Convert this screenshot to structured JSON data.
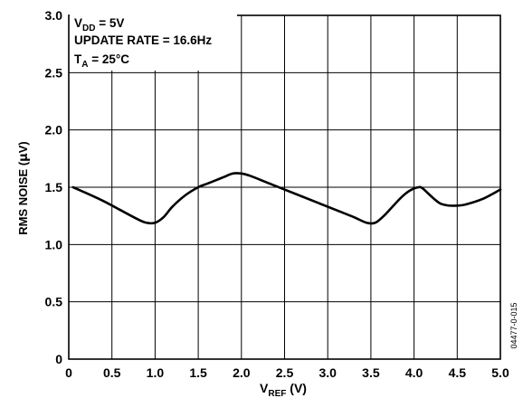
{
  "chart_data": {
    "type": "line",
    "xlabel": {
      "main": "V",
      "sub": "REF",
      "unit": " (V)"
    },
    "ylabel": {
      "pre": "RMS NOISE (",
      "mu": "µ",
      "post": "V)"
    },
    "xlim": [
      0,
      5
    ],
    "ylim": [
      0,
      3
    ],
    "grid": true,
    "x_ticks": [
      "0",
      "0.5",
      "1.0",
      "1.5",
      "2.0",
      "2.5",
      "3.0",
      "3.5",
      "4.0",
      "4.5",
      "5.0"
    ],
    "y_ticks": [
      "0",
      "0.5",
      "1.0",
      "1.5",
      "2.0",
      "2.5",
      "3.0"
    ],
    "annotations": {
      "line1": {
        "main": "V",
        "sub": "DD",
        "rest": " = 5V"
      },
      "line2": "UPDATE RATE = 16.6Hz",
      "line3": {
        "main": "T",
        "sub": "A",
        "rest": " = 25°C"
      }
    },
    "figure_code": "04477-0-015",
    "series": [
      {
        "x": [
          0.05,
          0.2,
          0.4,
          0.6,
          0.8,
          0.9,
          1.0,
          1.1,
          1.2,
          1.35,
          1.5,
          1.6,
          1.7,
          1.8,
          1.9,
          2.0,
          2.1,
          2.3,
          2.5,
          2.7,
          2.9,
          3.1,
          3.3,
          3.45,
          3.55,
          3.65,
          3.75,
          3.85,
          3.95,
          4.05,
          4.1,
          4.2,
          4.3,
          4.4,
          4.5,
          4.6,
          4.8,
          5.0
        ],
        "y": [
          1.5,
          1.45,
          1.38,
          1.3,
          1.22,
          1.19,
          1.19,
          1.24,
          1.33,
          1.43,
          1.5,
          1.53,
          1.56,
          1.59,
          1.62,
          1.62,
          1.6,
          1.54,
          1.48,
          1.42,
          1.36,
          1.3,
          1.24,
          1.19,
          1.19,
          1.25,
          1.33,
          1.41,
          1.47,
          1.5,
          1.49,
          1.42,
          1.36,
          1.34,
          1.34,
          1.35,
          1.4,
          1.48
        ]
      }
    ]
  }
}
